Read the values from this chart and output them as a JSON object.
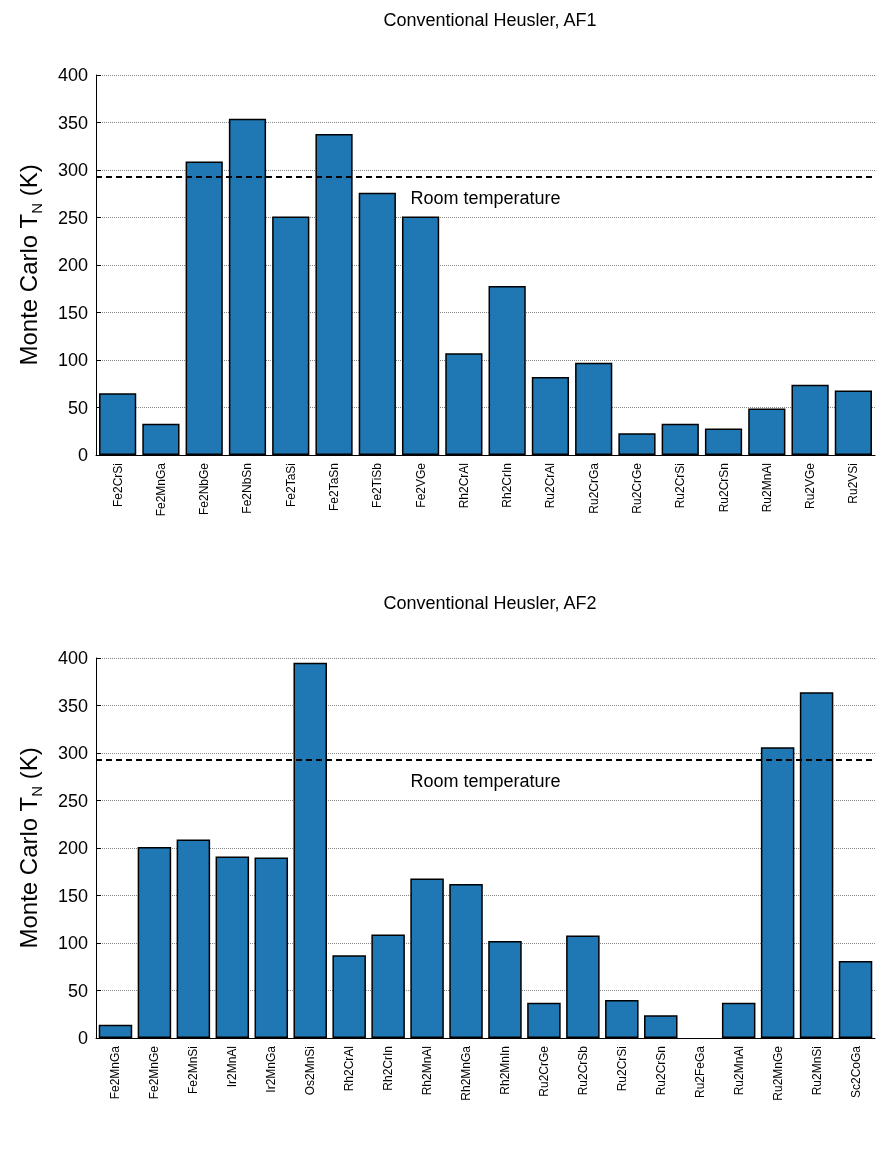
{
  "chart_data": [
    {
      "type": "bar",
      "title": "Conventional Heusler, AF1",
      "ylabel": "Monte Carlo T$_{N}$ (K)",
      "categories": [
        "Fe2CrSi",
        "Fe2MnGa",
        "Fe2NbGe",
        "Fe2NbSn",
        "Fe2TaSi",
        "Fe2TaSn",
        "Fe2TiSb",
        "Fe2VGe",
        "Rh2CrAl",
        "Rh2CrIn",
        "Ru2CrAl",
        "Ru2CrGa",
        "Ru2CrGe",
        "Ru2CrSi",
        "Ru2CrSn",
        "Ru2MnAl",
        "Ru2VGe",
        "Ru2VSi"
      ],
      "values": [
        65,
        33,
        309,
        354,
        251,
        338,
        276,
        251,
        107,
        178,
        82,
        97,
        23,
        33,
        28,
        49,
        74,
        68
      ],
      "color": "#1f77b4",
      "ylim": [
        0,
        400
      ],
      "yticks": [
        0,
        50,
        100,
        150,
        200,
        250,
        300,
        350,
        400
      ],
      "grid": "y",
      "ref_lines": [
        {
          "axis": "y",
          "value": 293,
          "label": "Room temperature",
          "color": "#000000",
          "line_style": "dashed"
        }
      ]
    },
    {
      "type": "bar",
      "title": "Conventional Heusler, AF2",
      "ylabel": "Monte Carlo T$_{N}$ (K)",
      "categories": [
        "Fe2MnGa",
        "Fe2MnGe",
        "Fe2MnSi",
        "Ir2MnAl",
        "Ir2MnGa",
        "Os2MnSi",
        "Rh2CrAl",
        "Rh2CrIn",
        "Rh2MnAl",
        "Rh2MnGa",
        "Rh2MnIn",
        "Ru2CrGe",
        "Ru2CrSb",
        "Ru2CrSi",
        "Ru2CrSn",
        "Ru2FeGa",
        "Ru2MnAl",
        "Ru2MnGe",
        "Ru2MnSi",
        "Sc2CoGa"
      ],
      "values": [
        14,
        201,
        209,
        191,
        190,
        395,
        87,
        109,
        168,
        162,
        102,
        37,
        108,
        40,
        24,
        null,
        37,
        306,
        364,
        81
      ],
      "color": "#1f77b4",
      "ylim": [
        0,
        400
      ],
      "yticks": [
        0,
        50,
        100,
        150,
        200,
        250,
        300,
        350,
        400
      ],
      "grid": "y",
      "ref_lines": [
        {
          "axis": "y",
          "value": 293,
          "label": "Room temperature",
          "color": "#000000",
          "line_style": "dashed"
        }
      ]
    }
  ]
}
